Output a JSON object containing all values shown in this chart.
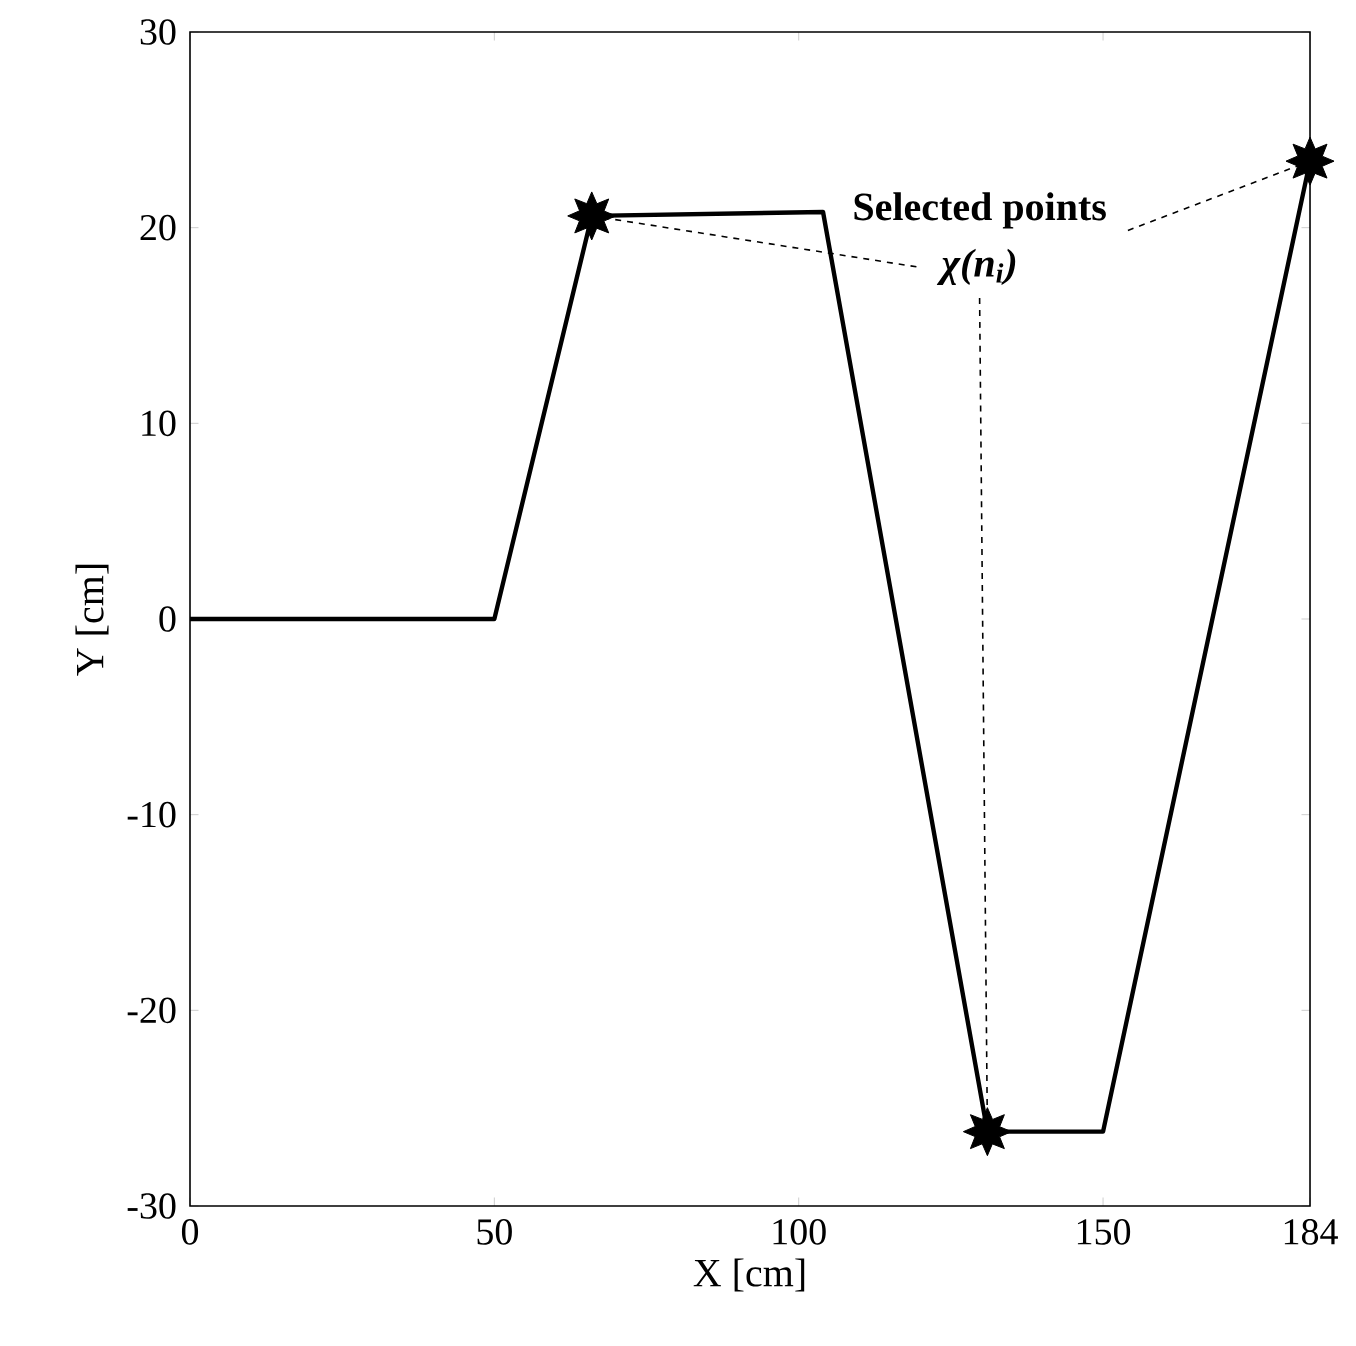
{
  "chart_data": {
    "type": "line",
    "xlabel": "X [cm]",
    "ylabel": "Y [cm]",
    "annotations": [
      {
        "text": "Selected points",
        "x": 184,
        "y": 23.4
      },
      {
        "text": "χ(n$_{i}$)",
        "x": 131,
        "y": -26.2
      }
    ],
    "series": [
      {
        "color": "#000000",
        "x": [
          0,
          50,
          66,
          104,
          131,
          150,
          184
        ],
        "values": [
          0,
          0,
          20.6,
          20.8,
          -26.2,
          -26.2,
          23.4
        ]
      },
      {
        "type": "scatter",
        "color": "#000000",
        "marker": "star",
        "x": [
          66,
          131,
          184
        ],
        "values": [
          20.6,
          -26.2,
          23.4
        ]
      }
    ],
    "xlim": [
      0,
      184
    ],
    "xticks": [
      0,
      50,
      100,
      150,
      184
    ],
    "ylim": [
      -30,
      30
    ],
    "yticks": [
      -30,
      -20,
      -10,
      0,
      10,
      20,
      30
    ],
    "grid": false
  }
}
